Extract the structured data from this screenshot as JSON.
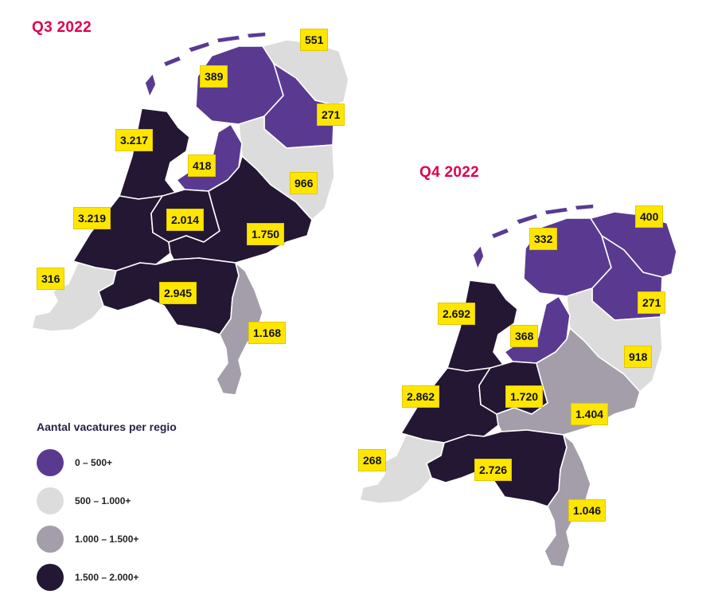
{
  "colors": {
    "purple": "#5a3a91",
    "light_grey": "#dcdcdc",
    "mid_grey": "#a39ea9",
    "dark": "#241733",
    "label_bg": "#ffe600",
    "title": "#e0004d"
  },
  "maps": [
    {
      "title": "Q3 2022",
      "labels": {
        "groningen": "551",
        "friesland": "389",
        "drenthe": "271",
        "noord_holland": "3.217",
        "flevoland": "418",
        "overijssel": "966",
        "zuid_holland": "3.219",
        "utrecht": "2.014",
        "gelderland": "1.750",
        "zeeland": "316",
        "noord_brabant": "2.945",
        "limburg": "1.168"
      }
    },
    {
      "title": "Q4 2022",
      "labels": {
        "groningen": "400",
        "friesland": "332",
        "drenthe": "271",
        "noord_holland": "2.692",
        "flevoland": "368",
        "overijssel": "918",
        "zuid_holland": "2.862",
        "utrecht": "1.720",
        "gelderland": "1.404",
        "zeeland": "268",
        "noord_brabant": "2.726",
        "limburg": "1.046"
      }
    }
  ],
  "legend": {
    "title": "Aantal vacatures per regio",
    "items": [
      {
        "label": "0 – 500+",
        "color": "#5a3a91"
      },
      {
        "label": "500 – 1.000+",
        "color": "#dcdcdc"
      },
      {
        "label": "1.000 – 1.500+",
        "color": "#a39ea9"
      },
      {
        "label": "1.500 – 2.000+",
        "color": "#241733"
      }
    ]
  }
}
